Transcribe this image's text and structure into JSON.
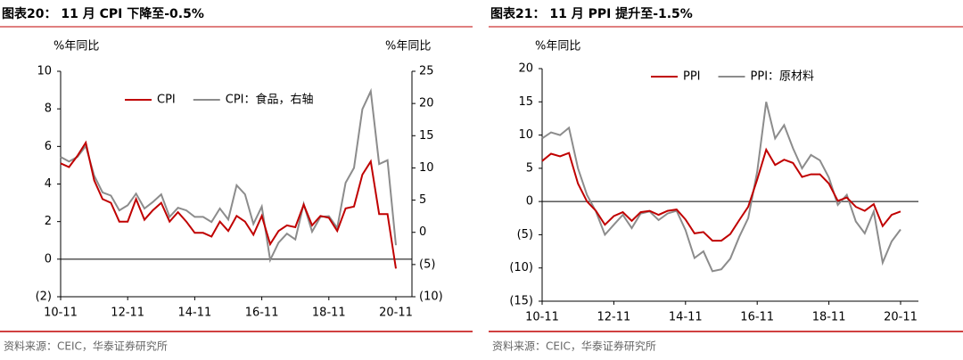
{
  "chart_data": [
    {
      "type": "line",
      "title": "图表20： 11 月 CPI 下降至-0.5%",
      "y_label": "%年同比",
      "y2_label": "%年同比",
      "source": "资料来源：CEIC，华泰证券研究所",
      "legend": "upper center",
      "categories": [
        "10-11",
        null,
        null,
        null,
        null,
        null,
        null,
        null,
        "12-11",
        null,
        null,
        null,
        null,
        null,
        null,
        null,
        "14-11",
        null,
        null,
        null,
        null,
        null,
        null,
        null,
        "16-11",
        null,
        null,
        null,
        null,
        null,
        null,
        null,
        "18-11",
        null,
        null,
        null,
        null,
        null,
        null,
        null,
        "20-11"
      ],
      "ylim": [
        -2,
        10
      ],
      "yticks": [
        {
          "value": -2,
          "label": "(2)"
        },
        0,
        2,
        4,
        6,
        8,
        10
      ],
      "y2lim": [
        -10,
        25
      ],
      "y2ticks": [
        {
          "value": -10,
          "label": "(10)"
        },
        {
          "value": -5,
          "label": "(5)"
        },
        0,
        5,
        10,
        15,
        20,
        25
      ],
      "series": [
        {
          "name": "CPI",
          "color": "#c00000",
          "values": [
            5.1,
            4.9,
            5.5,
            6.2,
            4.2,
            3.2,
            3.0,
            2.0,
            2.0,
            3.2,
            2.1,
            2.6,
            3.0,
            2.0,
            2.5,
            2.0,
            1.4,
            1.4,
            1.2,
            2.0,
            1.5,
            2.3,
            2.0,
            1.3,
            2.3,
            0.8,
            1.5,
            1.8,
            1.7,
            2.9,
            1.8,
            2.3,
            2.2,
            1.5,
            2.7,
            2.8,
            4.5,
            5.2,
            2.4,
            2.4,
            -0.5
          ]
        },
        {
          "name": "CPI：食品，右轴",
          "color": "#8c8c8c",
          "axis": "y2",
          "values": [
            11.7,
            11.0,
            11.7,
            13.4,
            8.8,
            6.2,
            5.7,
            3.4,
            4.2,
            6.0,
            3.7,
            4.7,
            5.9,
            2.4,
            3.8,
            3.4,
            2.4,
            2.4,
            1.6,
            3.7,
            2.0,
            7.3,
            5.9,
            1.3,
            4.0,
            -4.3,
            -1.6,
            -0.2,
            -1.1,
            4.4,
            0.1,
            2.4,
            2.5,
            0.7,
            7.7,
            10.0,
            19.1,
            21.9,
            10.6,
            11.2,
            -2.0
          ]
        }
      ]
    },
    {
      "type": "line",
      "title": "图表21： 11 月 PPI 提升至-1.5%",
      "y_label": "%年同比",
      "source": "资料来源：CEIC，华泰证券研究所",
      "legend": "upper left",
      "categories": [
        "10-11",
        null,
        null,
        null,
        null,
        null,
        null,
        null,
        "12-11",
        null,
        null,
        null,
        null,
        null,
        null,
        null,
        "14-11",
        null,
        null,
        null,
        null,
        null,
        null,
        null,
        "16-11",
        null,
        null,
        null,
        null,
        null,
        null,
        null,
        "18-11",
        null,
        null,
        null,
        null,
        null,
        null,
        null,
        "20-11"
      ],
      "ylim": [
        -15,
        20
      ],
      "yticks": [
        {
          "value": -15,
          "label": "(15)"
        },
        {
          "value": -10,
          "label": "(10)"
        },
        {
          "value": -5,
          "label": "(5)"
        },
        0,
        5,
        10,
        15,
        20
      ],
      "series": [
        {
          "name": "PPI",
          "color": "#c00000",
          "values": [
            6.1,
            7.2,
            6.8,
            7.3,
            2.7,
            0.0,
            -1.4,
            -3.5,
            -2.2,
            -1.6,
            -2.9,
            -1.6,
            -1.4,
            -2.0,
            -1.4,
            -1.2,
            -2.7,
            -4.8,
            -4.6,
            -5.9,
            -5.9,
            -4.9,
            -2.8,
            -0.8,
            3.3,
            7.8,
            5.5,
            6.3,
            5.8,
            3.7,
            4.1,
            4.1,
            2.7,
            0.1,
            0.6,
            -0.8,
            -1.4,
            -0.4,
            -3.7,
            -2.0,
            -1.5
          ]
        },
        {
          "name": "PPI：原材料",
          "color": "#8c8c8c",
          "values": [
            9.5,
            10.4,
            10.0,
            11.1,
            5.0,
            1.0,
            -1.5,
            -5.0,
            -3.5,
            -2.0,
            -4.0,
            -1.8,
            -1.5,
            -2.8,
            -1.8,
            -1.4,
            -4.3,
            -8.5,
            -7.5,
            -10.5,
            -10.2,
            -8.6,
            -5.3,
            -2.5,
            4.5,
            15.0,
            9.5,
            11.5,
            8.0,
            5.0,
            7.0,
            6.2,
            3.6,
            -0.5,
            1.0,
            -3.0,
            -4.8,
            -1.5,
            -9.2,
            -6.0,
            -4.2
          ]
        }
      ]
    }
  ]
}
